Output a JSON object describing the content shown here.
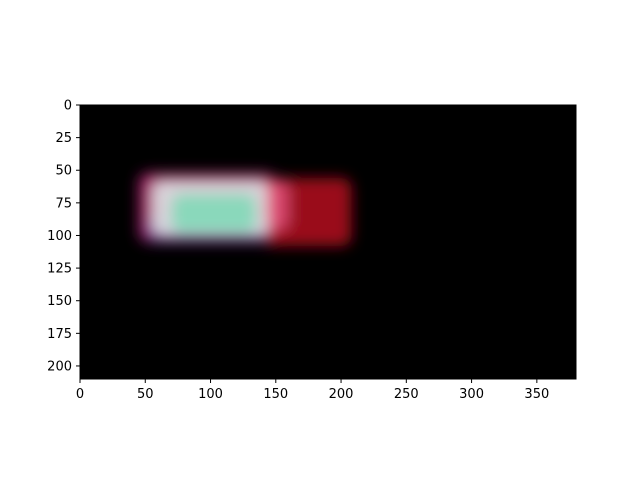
{
  "chart_data": {
    "type": "heatmap",
    "title": "",
    "xlabel": "",
    "ylabel": "",
    "xlim": [
      0,
      380
    ],
    "ylim": [
      210,
      0
    ],
    "x_ticks": [
      0,
      50,
      100,
      150,
      200,
      250,
      300,
      350
    ],
    "y_ticks": [
      0,
      25,
      50,
      75,
      100,
      125,
      150,
      175,
      200
    ],
    "x_tick_labels": [
      "0",
      "50",
      "100",
      "150",
      "200",
      "250",
      "300",
      "350"
    ],
    "y_tick_labels": [
      "0",
      "25",
      "50",
      "75",
      "100",
      "125",
      "150",
      "175",
      "200"
    ],
    "grid": false,
    "background": "#000000",
    "blobs": [
      {
        "label": "magenta-halo",
        "x_range": [
          45,
          150
        ],
        "y_range": [
          52,
          105
        ],
        "color": "#c0207a",
        "opacity": 0.85
      },
      {
        "label": "red-trail",
        "x_range": [
          140,
          208
        ],
        "y_range": [
          56,
          108
        ],
        "color": "#c0101e",
        "opacity": 0.8
      },
      {
        "label": "violet-edge",
        "x_range": [
          50,
          145
        ],
        "y_range": [
          85,
          106
        ],
        "color": "#5b2a9a",
        "opacity": 0.6
      },
      {
        "label": "white-core",
        "x_range": [
          55,
          145
        ],
        "y_range": [
          58,
          100
        ],
        "color": "#dfe7e6",
        "opacity": 0.9
      },
      {
        "label": "green-center",
        "x_range": [
          70,
          135
        ],
        "y_range": [
          68,
          98
        ],
        "color": "#6fd9b0",
        "opacity": 0.75
      },
      {
        "label": "pink-right-edge",
        "x_range": [
          143,
          160
        ],
        "y_range": [
          58,
          96
        ],
        "color": "#f06090",
        "opacity": 0.7
      }
    ]
  }
}
